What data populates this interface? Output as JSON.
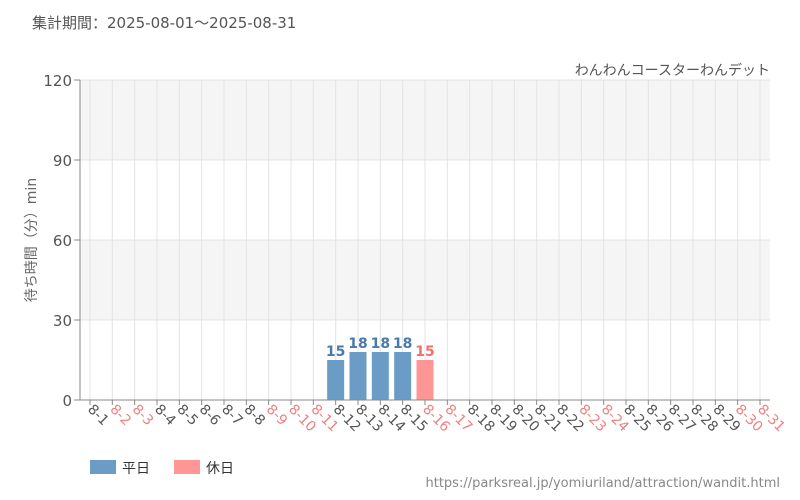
{
  "period": "集計期間：2025-08-01～2025-08-31",
  "source_url": "https://parksreal.jp/yomiuriland/attraction/wandit.html",
  "chart_data": {
    "type": "bar",
    "title": "わんわんコースターわんデット",
    "ylabel": "待ち時間（分）min",
    "ylim": [
      0,
      120
    ],
    "yticks": [
      0,
      30,
      60,
      90,
      120
    ],
    "grid": true,
    "legend_position": "bottom-left",
    "categories": [
      "8-1",
      "8-2",
      "8-3",
      "8-4",
      "8-5",
      "8-6",
      "8-7",
      "8-8",
      "8-9",
      "8-10",
      "8-11",
      "8-12",
      "8-13",
      "8-14",
      "8-15",
      "8-16",
      "8-17",
      "8-18",
      "8-19",
      "8-20",
      "8-21",
      "8-22",
      "8-23",
      "8-24",
      "8-25",
      "8-26",
      "8-27",
      "8-28",
      "8-29",
      "8-30",
      "8-31"
    ],
    "holiday_categories": [
      "8-2",
      "8-3",
      "8-9",
      "8-10",
      "8-11",
      "8-16",
      "8-17",
      "8-23",
      "8-24",
      "8-30",
      "8-31"
    ],
    "series": [
      {
        "name": "平日",
        "color": "#6a9cc6",
        "label_color": "#4a7aa8",
        "values": [
          null,
          null,
          null,
          null,
          null,
          null,
          null,
          null,
          null,
          null,
          null,
          15,
          18,
          18,
          18,
          null,
          null,
          null,
          null,
          null,
          null,
          null,
          null,
          null,
          null,
          null,
          null,
          null,
          null,
          null,
          null
        ]
      },
      {
        "name": "休日",
        "color": "#ff9696",
        "label_color": "#f07070",
        "values": [
          null,
          null,
          null,
          null,
          null,
          null,
          null,
          null,
          null,
          null,
          null,
          null,
          null,
          null,
          null,
          15,
          null,
          null,
          null,
          null,
          null,
          null,
          null,
          null,
          null,
          null,
          null,
          null,
          null,
          null,
          null
        ]
      }
    ],
    "colors": {
      "weekday_tick": "#555555",
      "holiday_tick": "#f08080",
      "band": "#f5f5f5",
      "grid": "#e4e4e4",
      "axis": "#888888"
    }
  }
}
